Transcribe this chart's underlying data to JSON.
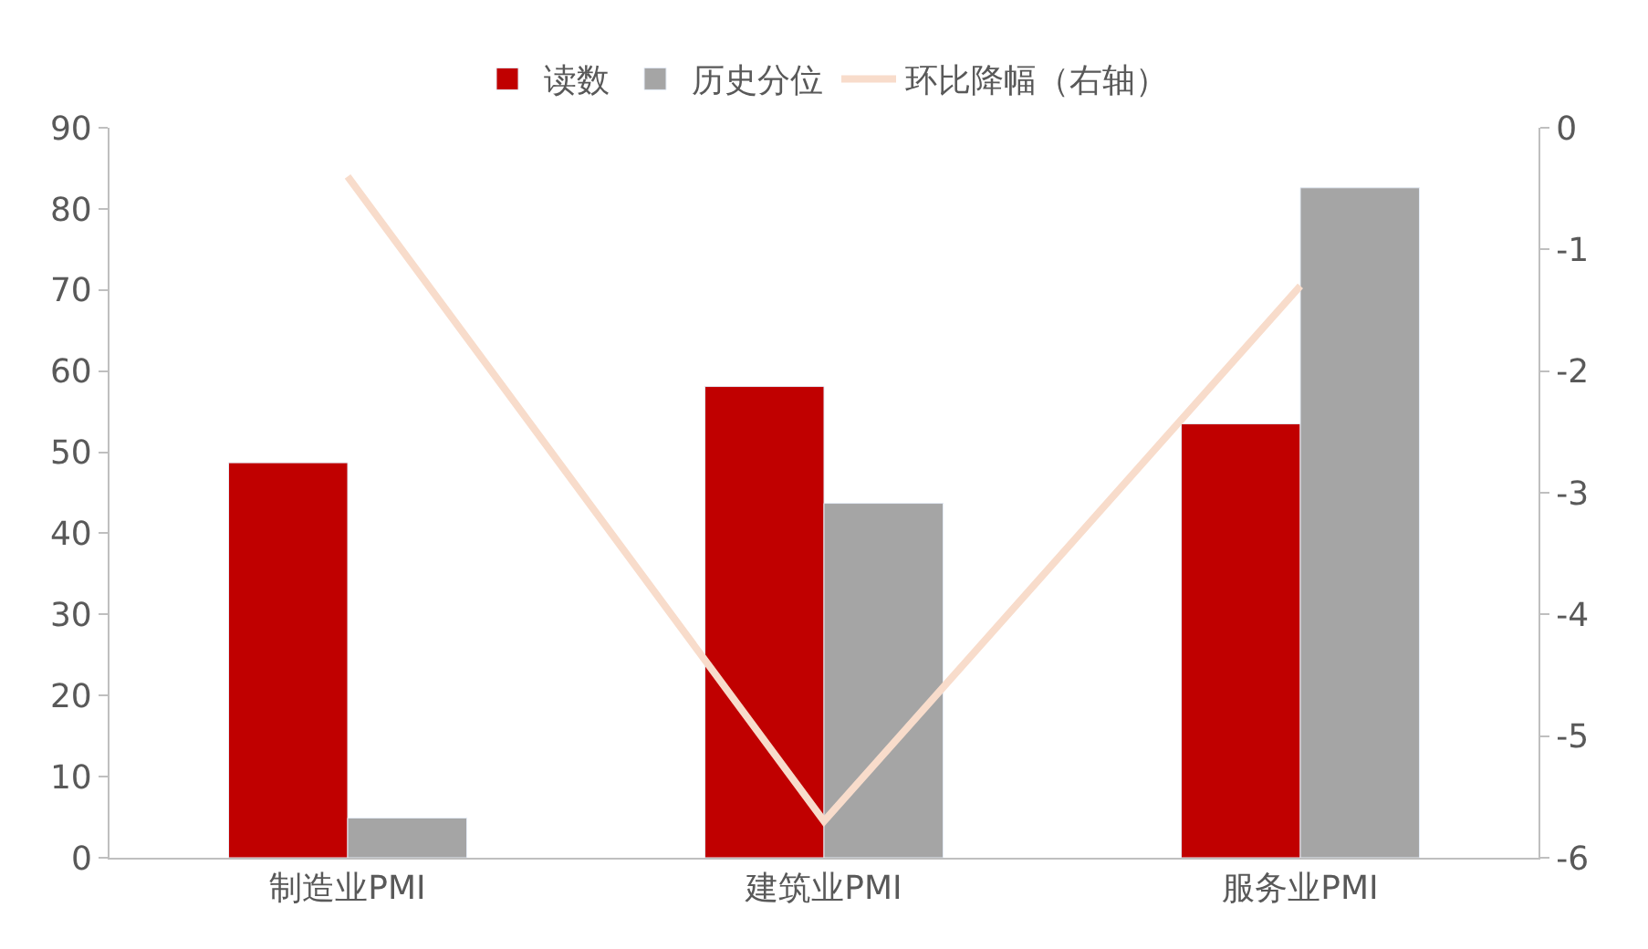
{
  "chart_data": {
    "type": "bar",
    "categories": [
      "制造业PMI",
      "建筑业PMI",
      "服务业PMI"
    ],
    "series": [
      {
        "name": "读数",
        "color": "#c00000",
        "values": [
          48.7,
          58.1,
          53.5
        ]
      },
      {
        "name": "历史分位",
        "color": "#a5a5a5",
        "values": [
          4.9,
          43.7,
          82.6
        ]
      },
      {
        "name": "环比降幅（右轴）",
        "type": "line",
        "axis": "y2",
        "color": "#f8dccb",
        "values": [
          -0.4,
          -5.7,
          -1.3
        ]
      }
    ],
    "ylim": [
      0,
      90
    ],
    "yticks": [
      0,
      10,
      20,
      30,
      40,
      50,
      60,
      70,
      80,
      90
    ],
    "y2lim": [
      -6,
      0
    ],
    "y2ticks": [
      -6,
      -5,
      -4,
      -3,
      -2,
      -1,
      0
    ],
    "legend": "top",
    "marker": "none"
  }
}
